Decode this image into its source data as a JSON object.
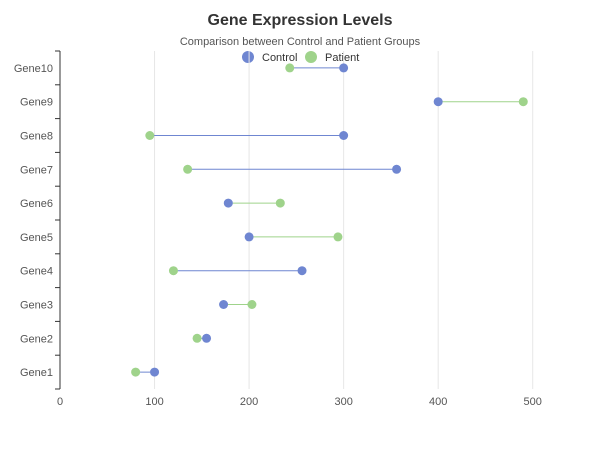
{
  "colors": {
    "control": "#6f86d1",
    "patient": "#9fd38b",
    "axis": "#333333",
    "grid": "#e6e6e6"
  },
  "chart_data": {
    "type": "dumbbell",
    "title": "Gene Expression Levels",
    "subtitle": "Comparison between Control and Patient Groups",
    "xlabel": "",
    "ylabel": "",
    "xlim": [
      0,
      550
    ],
    "x_ticks": [
      0,
      100,
      200,
      300,
      400,
      500
    ],
    "grid": true,
    "legend_position": "top-center",
    "categories": [
      "Gene1",
      "Gene2",
      "Gene3",
      "Gene4",
      "Gene5",
      "Gene6",
      "Gene7",
      "Gene8",
      "Gene9",
      "Gene10"
    ],
    "series": [
      {
        "name": "Control",
        "values": [
          100,
          155,
          173,
          256,
          200,
          178,
          356,
          300,
          400,
          300
        ]
      },
      {
        "name": "Patient",
        "values": [
          80,
          145,
          203,
          120,
          294,
          233,
          135,
          95,
          490,
          243
        ]
      }
    ]
  }
}
